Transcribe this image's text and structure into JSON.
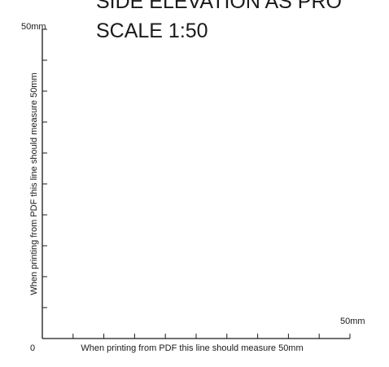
{
  "drawing": {
    "title": "SIDE ELEVATION AS PRO",
    "scale_label": "SCALE 1:50"
  },
  "vertical_scale": {
    "top_label": "50mm",
    "caption": "When printing from PDF this line should measure 50mm",
    "divisions": 10
  },
  "horizontal_scale": {
    "origin_label": "0",
    "end_label": "50mm",
    "caption": "When printing from PDF this line should measure 50mm",
    "divisions": 10
  }
}
